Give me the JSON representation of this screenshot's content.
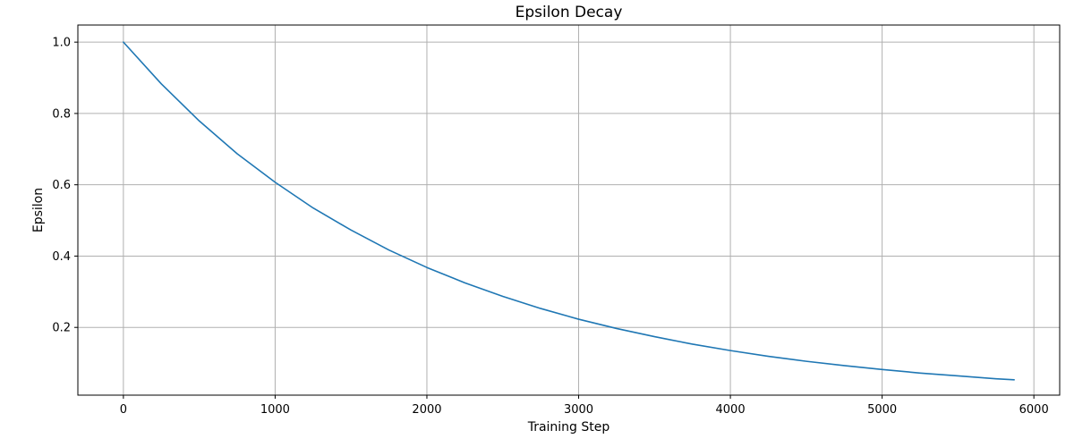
{
  "chart_data": {
    "type": "line",
    "title": "Epsilon Decay",
    "xlabel": "Training Step",
    "ylabel": "Epsilon",
    "xlim": [
      -300,
      6170
    ],
    "ylim": [
      0.01,
      1.048
    ],
    "xticks": [
      0,
      1000,
      2000,
      3000,
      4000,
      5000,
      6000
    ],
    "yticks": [
      0.2,
      0.4,
      0.6,
      0.8,
      1.0
    ],
    "ytick_labels": [
      "0.2",
      "0.4",
      "0.6",
      "0.8",
      "1.0"
    ],
    "grid": true,
    "line_color": "#1f77b4",
    "series": [
      {
        "x": [
          0,
          250,
          500,
          750,
          1000,
          1250,
          1500,
          1750,
          2000,
          2250,
          2500,
          2750,
          3000,
          3250,
          3500,
          3750,
          4000,
          4250,
          4500,
          4750,
          5000,
          5250,
          5500,
          5750,
          5870
        ],
        "values": [
          1.0,
          0.883,
          0.779,
          0.687,
          0.607,
          0.535,
          0.473,
          0.417,
          0.368,
          0.325,
          0.287,
          0.253,
          0.223,
          0.197,
          0.174,
          0.153,
          0.135,
          0.119,
          0.105,
          0.093,
          0.082,
          0.072,
          0.064,
          0.056,
          0.053
        ]
      }
    ]
  }
}
